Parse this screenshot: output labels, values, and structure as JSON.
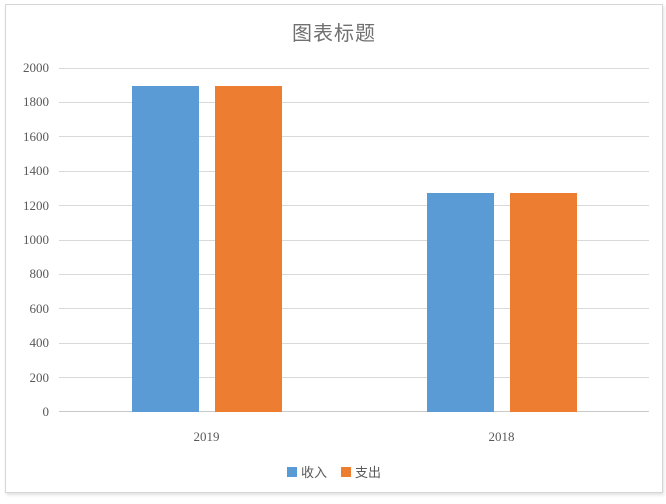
{
  "chart_data": {
    "type": "bar",
    "title": "图表标题",
    "categories": [
      "2019",
      "2018"
    ],
    "series": [
      {
        "name": "收入",
        "color": "#5B9BD5",
        "values": [
          1895,
          1275
        ]
      },
      {
        "name": "支出",
        "color": "#ED7D31",
        "values": [
          1895,
          1275
        ]
      }
    ],
    "xlabel": "",
    "ylabel": "",
    "ylim": [
      0,
      2000
    ],
    "ytick_step": 200,
    "yticks": [
      0,
      200,
      400,
      600,
      800,
      1000,
      1200,
      1400,
      1600,
      1800,
      2000
    ],
    "grid": true,
    "legend_position": "bottom"
  },
  "style": {
    "gridline_color": "#d9d9d9",
    "axis_line_color": "#c9c9c9",
    "tick_label_color": "#595959",
    "title_color": "#707070",
    "frame_border_color": "#d6d6d6",
    "background": "#ffffff"
  }
}
